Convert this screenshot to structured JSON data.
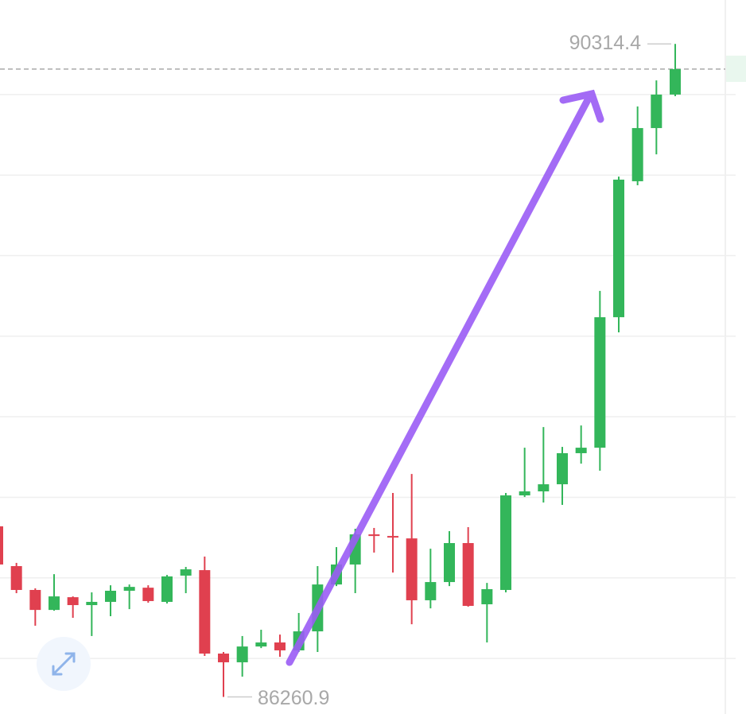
{
  "chart_data": {
    "type": "candlestick",
    "open": [
      87320,
      87073,
      86925,
      86801,
      86880,
      86831,
      86851,
      86920,
      86939,
      86851,
      87014,
      87048,
      86530,
      86476,
      86574,
      86599,
      86550,
      86668,
      86959,
      87083,
      87270,
      87260,
      87245,
      86861,
      86974,
      87216,
      86836,
      86925,
      87512,
      87537,
      87581,
      87774,
      87808,
      88618,
      89462,
      89792,
      90000
    ],
    "high": [
      87329,
      87093,
      86935,
      87023,
      86885,
      86910,
      86954,
      86959,
      86954,
      87018,
      87068,
      87132,
      86540,
      86639,
      86678,
      86648,
      86782,
      87073,
      87191,
      87305,
      87310,
      87527,
      87645,
      87181,
      87290,
      87315,
      86969,
      87527,
      87808,
      87936,
      87813,
      87946,
      88781,
      89491,
      89926,
      90088,
      90314.4
    ],
    "low": [
      87073,
      86905,
      86703,
      86796,
      86752,
      86639,
      86762,
      86806,
      86846,
      86841,
      86905,
      86515,
      86260.9,
      86387,
      86564,
      86510,
      86540,
      86540,
      86949,
      86905,
      87157,
      87033,
      86712,
      86811,
      86949,
      86821,
      86599,
      86910,
      87502,
      87468,
      87453,
      87709,
      87665,
      88524,
      89437,
      89629,
      89990
    ],
    "close": [
      87083,
      86925,
      86801,
      86885,
      86831,
      86851,
      86920,
      86944,
      86856,
      87009,
      87053,
      86530,
      86476,
      86574,
      86599,
      86550,
      86668,
      86959,
      87083,
      87270,
      87260,
      87250,
      86861,
      86974,
      87216,
      86826,
      86930,
      87512,
      87537,
      87581,
      87774,
      87808,
      88618,
      89472,
      89792,
      90000,
      90158
    ],
    "up_color": "#33b65a",
    "down_color": "#e0404f",
    "ylim": [
      86155,
      90587
    ],
    "yticks": [
      86500,
      87000,
      87500,
      88000,
      88500,
      89000,
      89500,
      90000
    ],
    "grid": true
  }
}
